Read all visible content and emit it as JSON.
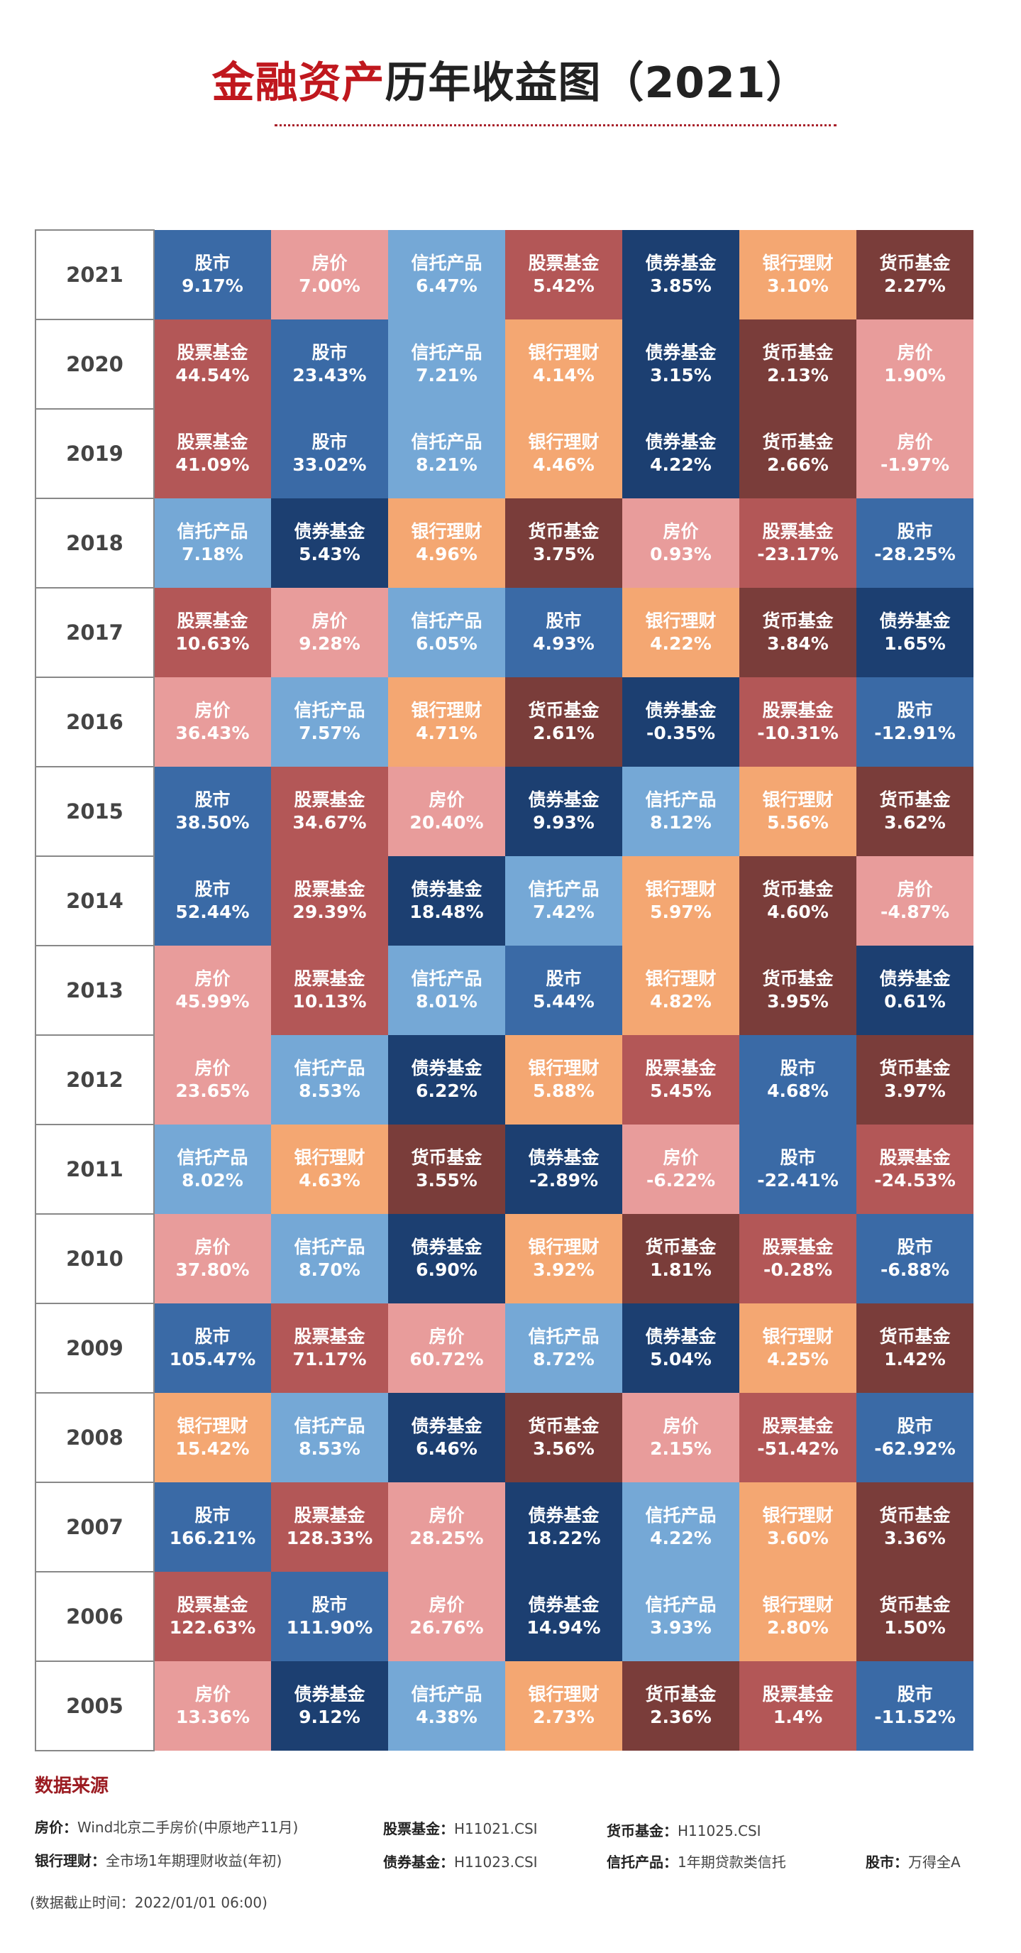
{
  "title": {
    "highlight": "金融资产",
    "rest": "历年收益图（2021）"
  },
  "colors": {
    "股市": "#3a6aa6",
    "房价": "#e89c9b",
    "信托产品": "#75a8d6",
    "股票基金": "#b35757",
    "债券基金": "#1c3f71",
    "银行理财": "#f4a772",
    "货币基金": "#7a3d3a"
  },
  "chart_data": {
    "type": "table",
    "title": "金融资产历年收益图（2021）",
    "rows": [
      {
        "year": "2021",
        "cells": [
          [
            "股市",
            "9.17%"
          ],
          [
            "房价",
            "7.00%"
          ],
          [
            "信托产品",
            "6.47%"
          ],
          [
            "股票基金",
            "5.42%"
          ],
          [
            "债券基金",
            "3.85%"
          ],
          [
            "银行理财",
            "3.10%"
          ],
          [
            "货币基金",
            "2.27%"
          ]
        ]
      },
      {
        "year": "2020",
        "cells": [
          [
            "股票基金",
            "44.54%"
          ],
          [
            "股市",
            "23.43%"
          ],
          [
            "信托产品",
            "7.21%"
          ],
          [
            "银行理财",
            "4.14%"
          ],
          [
            "债券基金",
            "3.15%"
          ],
          [
            "货币基金",
            "2.13%"
          ],
          [
            "房价",
            "1.90%"
          ]
        ]
      },
      {
        "year": "2019",
        "cells": [
          [
            "股票基金",
            "41.09%"
          ],
          [
            "股市",
            "33.02%"
          ],
          [
            "信托产品",
            "8.21%"
          ],
          [
            "银行理财",
            "4.46%"
          ],
          [
            "债券基金",
            "4.22%"
          ],
          [
            "货币基金",
            "2.66%"
          ],
          [
            "房价",
            "-1.97%"
          ]
        ]
      },
      {
        "year": "2018",
        "cells": [
          [
            "信托产品",
            "7.18%"
          ],
          [
            "债券基金",
            "5.43%"
          ],
          [
            "银行理财",
            "4.96%"
          ],
          [
            "货币基金",
            "3.75%"
          ],
          [
            "房价",
            "0.93%"
          ],
          [
            "股票基金",
            "-23.17%"
          ],
          [
            "股市",
            "-28.25%"
          ]
        ]
      },
      {
        "year": "2017",
        "cells": [
          [
            "股票基金",
            "10.63%"
          ],
          [
            "房价",
            "9.28%"
          ],
          [
            "信托产品",
            "6.05%"
          ],
          [
            "股市",
            "4.93%"
          ],
          [
            "银行理财",
            "4.22%"
          ],
          [
            "货币基金",
            "3.84%"
          ],
          [
            "债券基金",
            "1.65%"
          ]
        ]
      },
      {
        "year": "2016",
        "cells": [
          [
            "房价",
            "36.43%"
          ],
          [
            "信托产品",
            "7.57%"
          ],
          [
            "银行理财",
            "4.71%"
          ],
          [
            "货币基金",
            "2.61%"
          ],
          [
            "债券基金",
            "-0.35%"
          ],
          [
            "股票基金",
            "-10.31%"
          ],
          [
            "股市",
            "-12.91%"
          ]
        ]
      },
      {
        "year": "2015",
        "cells": [
          [
            "股市",
            "38.50%"
          ],
          [
            "股票基金",
            "34.67%"
          ],
          [
            "房价",
            "20.40%"
          ],
          [
            "债券基金",
            "9.93%"
          ],
          [
            "信托产品",
            "8.12%"
          ],
          [
            "银行理财",
            "5.56%"
          ],
          [
            "货币基金",
            "3.62%"
          ]
        ]
      },
      {
        "year": "2014",
        "cells": [
          [
            "股市",
            "52.44%"
          ],
          [
            "股票基金",
            "29.39%"
          ],
          [
            "债券基金",
            "18.48%"
          ],
          [
            "信托产品",
            "7.42%"
          ],
          [
            "银行理财",
            "5.97%"
          ],
          [
            "货币基金",
            "4.60%"
          ],
          [
            "房价",
            "-4.87%"
          ]
        ]
      },
      {
        "year": "2013",
        "cells": [
          [
            "房价",
            "45.99%"
          ],
          [
            "股票基金",
            "10.13%"
          ],
          [
            "信托产品",
            "8.01%"
          ],
          [
            "股市",
            "5.44%"
          ],
          [
            "银行理财",
            "4.82%"
          ],
          [
            "货币基金",
            "3.95%"
          ],
          [
            "债券基金",
            "0.61%"
          ]
        ]
      },
      {
        "year": "2012",
        "cells": [
          [
            "房价",
            "23.65%"
          ],
          [
            "信托产品",
            "8.53%"
          ],
          [
            "债券基金",
            "6.22%"
          ],
          [
            "银行理财",
            "5.88%"
          ],
          [
            "股票基金",
            "5.45%"
          ],
          [
            "股市",
            "4.68%"
          ],
          [
            "货币基金",
            "3.97%"
          ]
        ]
      },
      {
        "year": "2011",
        "cells": [
          [
            "信托产品",
            "8.02%"
          ],
          [
            "银行理财",
            "4.63%"
          ],
          [
            "货币基金",
            "3.55%"
          ],
          [
            "债券基金",
            "-2.89%"
          ],
          [
            "房价",
            "-6.22%"
          ],
          [
            "股市",
            "-22.41%"
          ],
          [
            "股票基金",
            "-24.53%"
          ]
        ]
      },
      {
        "year": "2010",
        "cells": [
          [
            "房价",
            "37.80%"
          ],
          [
            "信托产品",
            "8.70%"
          ],
          [
            "债券基金",
            "6.90%"
          ],
          [
            "银行理财",
            "3.92%"
          ],
          [
            "货币基金",
            "1.81%"
          ],
          [
            "股票基金",
            "-0.28%"
          ],
          [
            "股市",
            "-6.88%"
          ]
        ]
      },
      {
        "year": "2009",
        "cells": [
          [
            "股市",
            "105.47%"
          ],
          [
            "股票基金",
            "71.17%"
          ],
          [
            "房价",
            "60.72%"
          ],
          [
            "信托产品",
            "8.72%"
          ],
          [
            "债券基金",
            "5.04%"
          ],
          [
            "银行理财",
            "4.25%"
          ],
          [
            "货币基金",
            "1.42%"
          ]
        ]
      },
      {
        "year": "2008",
        "cells": [
          [
            "银行理财",
            "15.42%"
          ],
          [
            "信托产品",
            "8.53%"
          ],
          [
            "债券基金",
            "6.46%"
          ],
          [
            "货币基金",
            "3.56%"
          ],
          [
            "房价",
            "2.15%"
          ],
          [
            "股票基金",
            "-51.42%"
          ],
          [
            "股市",
            "-62.92%"
          ]
        ]
      },
      {
        "year": "2007",
        "cells": [
          [
            "股市",
            "166.21%"
          ],
          [
            "股票基金",
            "128.33%"
          ],
          [
            "房价",
            "28.25%"
          ],
          [
            "债券基金",
            "18.22%"
          ],
          [
            "信托产品",
            "4.22%"
          ],
          [
            "银行理财",
            "3.60%"
          ],
          [
            "货币基金",
            "3.36%"
          ]
        ]
      },
      {
        "year": "2006",
        "cells": [
          [
            "股票基金",
            "122.63%"
          ],
          [
            "股市",
            "111.90%"
          ],
          [
            "房价",
            "26.76%"
          ],
          [
            "债券基金",
            "14.94%"
          ],
          [
            "信托产品",
            "3.93%"
          ],
          [
            "银行理财",
            "2.80%"
          ],
          [
            "货币基金",
            "1.50%"
          ]
        ]
      },
      {
        "year": "2005",
        "cells": [
          [
            "房价",
            "13.36%"
          ],
          [
            "债券基金",
            "9.12%"
          ],
          [
            "信托产品",
            "4.38%"
          ],
          [
            "银行理财",
            "2.73%"
          ],
          [
            "货币基金",
            "2.36%"
          ],
          [
            "股票基金",
            "1.4%"
          ],
          [
            "股市",
            "-11.52%"
          ]
        ]
      }
    ]
  },
  "sources": {
    "title": "数据来源",
    "items": [
      {
        "label": "房价：",
        "value": "Wind北京二手房价(中原地产11月)"
      },
      {
        "label": "股票基金：",
        "value": "H11021.CSI"
      },
      {
        "label": "货币基金：",
        "value": "H11025.CSI"
      },
      {
        "label": "银行理财：",
        "value": "全市场1年期理财收益(年初)"
      },
      {
        "label": "债券基金：",
        "value": "H11023.CSI"
      },
      {
        "label": "信托产品：",
        "value": "1年期贷款类信托"
      },
      {
        "label": "股市：",
        "value": "万得全A"
      }
    ],
    "cutoff": "(数据截止时间：2022/01/01 06:00)"
  }
}
